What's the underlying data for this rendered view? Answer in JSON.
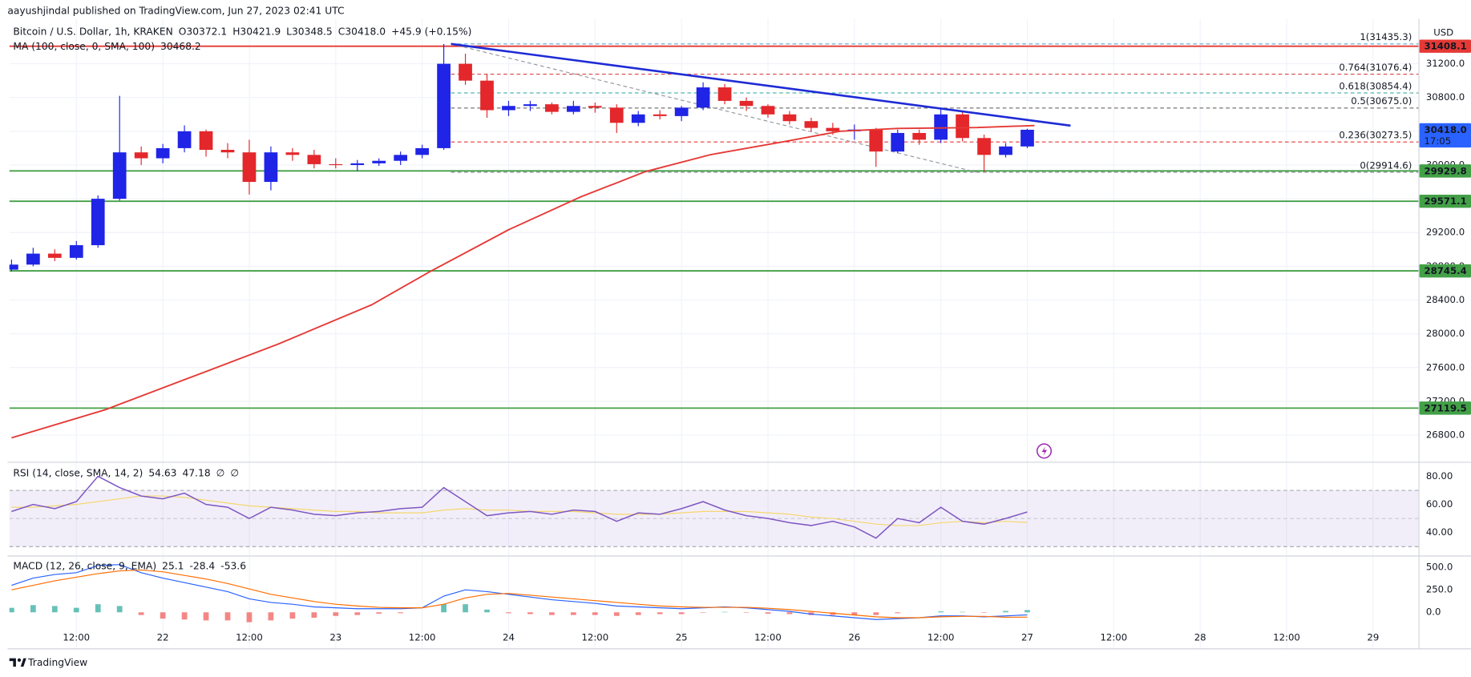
{
  "header": {
    "publisher": "aayushjindal published on TradingView.com, Jun 27, 2023 02:41 UTC"
  },
  "footer": {
    "brand": "TradingView"
  },
  "chart_data": [
    {
      "type": "candlestick",
      "title": "Bitcoin / U.S. Dollar, 1h, KRAKEN",
      "ohlc_legend": [
        "O30372.1",
        "H30421.9",
        "L30348.5",
        "C30418.0",
        "+45.9 (+0.15%)"
      ],
      "currency": "USD",
      "up_color": "#1f24e6",
      "down_color": "#e3272b",
      "x": [
        -21,
        -18,
        -15,
        -12,
        -9,
        -6,
        -3,
        0,
        3,
        6,
        9,
        12,
        15,
        18,
        21,
        24,
        27,
        30,
        33,
        36,
        39,
        42,
        45,
        48,
        51,
        54,
        57,
        60,
        63,
        66,
        69,
        72,
        75,
        78,
        81,
        84,
        87,
        90,
        93,
        96,
        99,
        102,
        105,
        108,
        111,
        114,
        117,
        120
      ],
      "open": [
        28760,
        28820,
        28950,
        28900,
        29050,
        29600,
        30150,
        30080,
        30200,
        30400,
        30180,
        30150,
        29800,
        30150,
        30120,
        30010,
        30000,
        30020,
        30050,
        30120,
        30200,
        31200,
        31000,
        30650,
        30700,
        30720,
        30630,
        30700,
        30680,
        30500,
        30600,
        30580,
        30680,
        30920,
        30760,
        30700,
        30600,
        30520,
        30440,
        30400,
        30420,
        30160,
        30380,
        30300,
        30600,
        30320,
        30120,
        30220
      ],
      "high": [
        28880,
        29020,
        29000,
        29100,
        29640,
        30820,
        30220,
        30250,
        30470,
        30420,
        30260,
        30300,
        30220,
        30200,
        30180,
        30080,
        30060,
        30080,
        30160,
        30240,
        31435,
        31320,
        31080,
        30760,
        30760,
        30740,
        30760,
        30740,
        30720,
        30640,
        30650,
        30700,
        30980,
        30960,
        30800,
        30720,
        30640,
        30560,
        30500,
        30480,
        30440,
        30420,
        30420,
        30660,
        30640,
        30360,
        30260,
        30430
      ],
      "low": [
        28740,
        28800,
        28860,
        28880,
        29020,
        29580,
        30000,
        30020,
        30150,
        30100,
        30080,
        29650,
        29700,
        30050,
        29960,
        29960,
        29930,
        29990,
        30000,
        30080,
        30180,
        30950,
        30560,
        30580,
        30640,
        30600,
        30600,
        30620,
        30380,
        30460,
        30540,
        30520,
        30650,
        30720,
        30640,
        30560,
        30480,
        30400,
        30360,
        30300,
        29980,
        30140,
        30240,
        30260,
        30280,
        29920,
        30090,
        30200
      ],
      "close": [
        28820,
        28950,
        28900,
        29050,
        29600,
        30150,
        30080,
        30200,
        30400,
        30180,
        30150,
        29800,
        30150,
        30120,
        30010,
        30000,
        30020,
        30050,
        30120,
        30200,
        31200,
        31000,
        30650,
        30700,
        30720,
        30630,
        30700,
        30680,
        30500,
        30600,
        30580,
        30680,
        30920,
        30760,
        30700,
        30600,
        30520,
        30440,
        30400,
        30420,
        30160,
        30380,
        30300,
        30600,
        30320,
        30120,
        30220,
        30418
      ],
      "xlim": [
        -21.3,
        174.3
      ],
      "xticks": [
        {
          "value": -12,
          "label": "12:00"
        },
        {
          "value": 0,
          "label": "22"
        },
        {
          "value": 12,
          "label": "12:00"
        },
        {
          "value": 24,
          "label": "23"
        },
        {
          "value": 36,
          "label": "12:00"
        },
        {
          "value": 48,
          "label": "24"
        },
        {
          "value": 60,
          "label": "12:00"
        },
        {
          "value": 72,
          "label": "25"
        },
        {
          "value": 84,
          "label": "12:00"
        },
        {
          "value": 96,
          "label": "26"
        },
        {
          "value": 108,
          "label": "12:00"
        },
        {
          "value": 120,
          "label": "27"
        },
        {
          "value": 132,
          "label": "12:00"
        },
        {
          "value": 144,
          "label": "28"
        },
        {
          "value": 156,
          "label": "12:00"
        },
        {
          "value": 168,
          "label": "29"
        }
      ],
      "ylim": [
        26511,
        31622
      ],
      "yticks": [
        {
          "value": 26800,
          "label": "26800.0"
        },
        {
          "value": 27200,
          "label": "27200.0"
        },
        {
          "value": 27600,
          "label": "27600.0"
        },
        {
          "value": 28000,
          "label": "28000.0"
        },
        {
          "value": 28400,
          "label": "28400.0"
        },
        {
          "value": 28800,
          "label": "28800.0"
        },
        {
          "value": 29200,
          "label": "29200.0"
        },
        {
          "value": 29600,
          "label": "29600.0"
        },
        {
          "value": 30000,
          "label": "30000.0"
        },
        {
          "value": 30400,
          "label": "30400.0"
        },
        {
          "value": 30800,
          "label": "30800.0"
        },
        {
          "value": 31200,
          "label": "31200.0"
        }
      ],
      "grid": true,
      "moving_average": {
        "name": "MA (100, close, 0, SMA, 100)",
        "last_value": 30468.2,
        "color": "#e53935",
        "x": [
          -21,
          -8,
          3,
          16,
          29,
          37,
          48,
          58,
          67,
          76,
          87,
          94,
          102,
          113,
          121
        ],
        "values": [
          26767,
          27100,
          27456,
          27878,
          28344,
          28733,
          29233,
          29622,
          29922,
          30122,
          30289,
          30400,
          30433,
          30444,
          30468.2
        ]
      },
      "horizontal_lines": [
        {
          "value": 31408.1,
          "color": "#e53935"
        },
        {
          "value": 29929.8,
          "color": "#43a047"
        },
        {
          "value": 29571.1,
          "color": "#43a047"
        },
        {
          "value": 28745.4,
          "color": "#43a047"
        },
        {
          "value": 27119.5,
          "color": "#43a047"
        }
      ],
      "fib_levels": {
        "x_start": 40,
        "levels": [
          {
            "value": 31435.3,
            "label": "1(31435.3)",
            "color": "#5aa9d6"
          },
          {
            "value": 31076.4,
            "label": "0.764(31076.4)",
            "color": "#d32f2f"
          },
          {
            "value": 30854.4,
            "label": "0.618(30854.4)",
            "color": "#26a69a"
          },
          {
            "value": 30675.0,
            "label": "0.5(30675.0)",
            "color": "#555555"
          },
          {
            "value": 30273.5,
            "label": "0.236(30273.5)",
            "color": "#e53935"
          },
          {
            "value": 29914.6,
            "label": "0(29914.6)",
            "color": "#787b86"
          }
        ]
      },
      "trend_line": {
        "x": [
          40,
          126
        ],
        "values": [
          31435,
          30467
        ],
        "color": "#1e2bd6"
      },
      "fib_diagonal": {
        "x": [
          40,
          113
        ],
        "values": [
          31435.3,
          29914.6
        ],
        "color": "#9598a1"
      },
      "last_price": {
        "value": 30418.0,
        "label": "30418.0",
        "countdown": "17:05",
        "color": "#2962ff"
      }
    },
    {
      "type": "line",
      "title": "RSI (14, close, SMA, 14, 2)",
      "header_values": [
        54.63,
        47.18,
        "∅",
        "∅"
      ],
      "header_colors": [
        "#7e57c2",
        "#f9c74f",
        "#787b86",
        "#787b86"
      ],
      "x": [
        -21,
        -18,
        -15,
        -12,
        -9,
        -6,
        -3,
        0,
        3,
        6,
        9,
        12,
        15,
        18,
        21,
        24,
        27,
        30,
        33,
        36,
        39,
        42,
        45,
        48,
        51,
        54,
        57,
        60,
        63,
        66,
        69,
        72,
        75,
        78,
        81,
        84,
        87,
        90,
        93,
        96,
        99,
        102,
        105,
        108,
        111,
        114,
        117,
        120
      ],
      "series": [
        {
          "color": "#f5d76e",
          "values": [
            58,
            58,
            59,
            60,
            62,
            64,
            66,
            66,
            65,
            63,
            61,
            59,
            58,
            57,
            56,
            55,
            55,
            54,
            54,
            54,
            56,
            57,
            56,
            56,
            55,
            55,
            55,
            54,
            53,
            53,
            53,
            54,
            55,
            55,
            55,
            54,
            53,
            51,
            50,
            48,
            46,
            45,
            45,
            47,
            48,
            47,
            48,
            47.18
          ]
        },
        {
          "color": "#7e57c2",
          "values": [
            55,
            60,
            57,
            62,
            80,
            72,
            66,
            64,
            68,
            60,
            58,
            50,
            58,
            56,
            53,
            52,
            54,
            55,
            57,
            58,
            72,
            62,
            52,
            54,
            55,
            53,
            56,
            55,
            48,
            54,
            53,
            57,
            62,
            56,
            52,
            50,
            47,
            45,
            48,
            44,
            36,
            50,
            47,
            58,
            48,
            46,
            50,
            54.63
          ]
        }
      ],
      "band": [
        30,
        70
      ],
      "midline": 50,
      "band_color": "#7e57c2",
      "ylim": [
        25.3,
        88
      ],
      "yticks": [
        {
          "value": 40,
          "label": "40.00"
        },
        {
          "value": 60,
          "label": "60.00"
        },
        {
          "value": 80,
          "label": "80.00"
        }
      ]
    },
    {
      "type": "macd",
      "title": "MACD (12, 26, close, 9, EMA)",
      "header_values": [
        25.1,
        -28.4,
        -53.6
      ],
      "header_colors": [
        "#26a69a",
        "#2962ff",
        "#ef5350"
      ],
      "x": [
        -21,
        -18,
        -15,
        -12,
        -9,
        -6,
        -3,
        0,
        3,
        6,
        9,
        12,
        15,
        18,
        21,
        24,
        27,
        30,
        33,
        36,
        39,
        42,
        45,
        48,
        51,
        54,
        57,
        60,
        63,
        66,
        69,
        72,
        75,
        78,
        81,
        84,
        87,
        90,
        93,
        96,
        99,
        102,
        105,
        108,
        111,
        114,
        117,
        120
      ],
      "histogram": {
        "up_color": "#26a69a",
        "down_color": "#ef5350",
        "values": [
          50,
          80,
          70,
          50,
          90,
          70,
          -30,
          -70,
          -80,
          -90,
          -90,
          -110,
          -90,
          -70,
          -60,
          -40,
          -30,
          -15,
          -10,
          0,
          90,
          90,
          30,
          -10,
          -20,
          -30,
          -30,
          -30,
          -40,
          -30,
          -20,
          -20,
          -5,
          5,
          -5,
          -15,
          -20,
          -30,
          -30,
          -30,
          -30,
          -10,
          0,
          10,
          5,
          -5,
          15,
          25.1
        ]
      },
      "series": [
        {
          "color": "#2962ff",
          "values": [
            300,
            380,
            420,
            440,
            520,
            530,
            440,
            380,
            330,
            280,
            230,
            150,
            110,
            90,
            60,
            50,
            40,
            40,
            40,
            50,
            180,
            250,
            230,
            200,
            170,
            140,
            120,
            100,
            70,
            60,
            50,
            40,
            50,
            60,
            50,
            30,
            10,
            -20,
            -40,
            -60,
            -80,
            -70,
            -60,
            -40,
            -40,
            -50,
            -40,
            -28.4
          ]
        },
        {
          "color": "#ff6d00",
          "values": [
            250,
            300,
            350,
            390,
            430,
            460,
            470,
            450,
            410,
            370,
            320,
            260,
            200,
            160,
            120,
            90,
            70,
            55,
            50,
            50,
            90,
            160,
            200,
            210,
            190,
            170,
            150,
            130,
            110,
            90,
            70,
            60,
            55,
            55,
            55,
            45,
            30,
            10,
            -10,
            -30,
            -50,
            -60,
            -60,
            -50,
            -45,
            -45,
            -55,
            -53.6
          ]
        }
      ],
      "ylim": [
        -385,
        594
      ],
      "yticks": [
        {
          "value": 0,
          "label": "0.0"
        },
        {
          "value": 250,
          "label": "250.0"
        },
        {
          "value": 500,
          "label": "500.0"
        }
      ]
    }
  ]
}
